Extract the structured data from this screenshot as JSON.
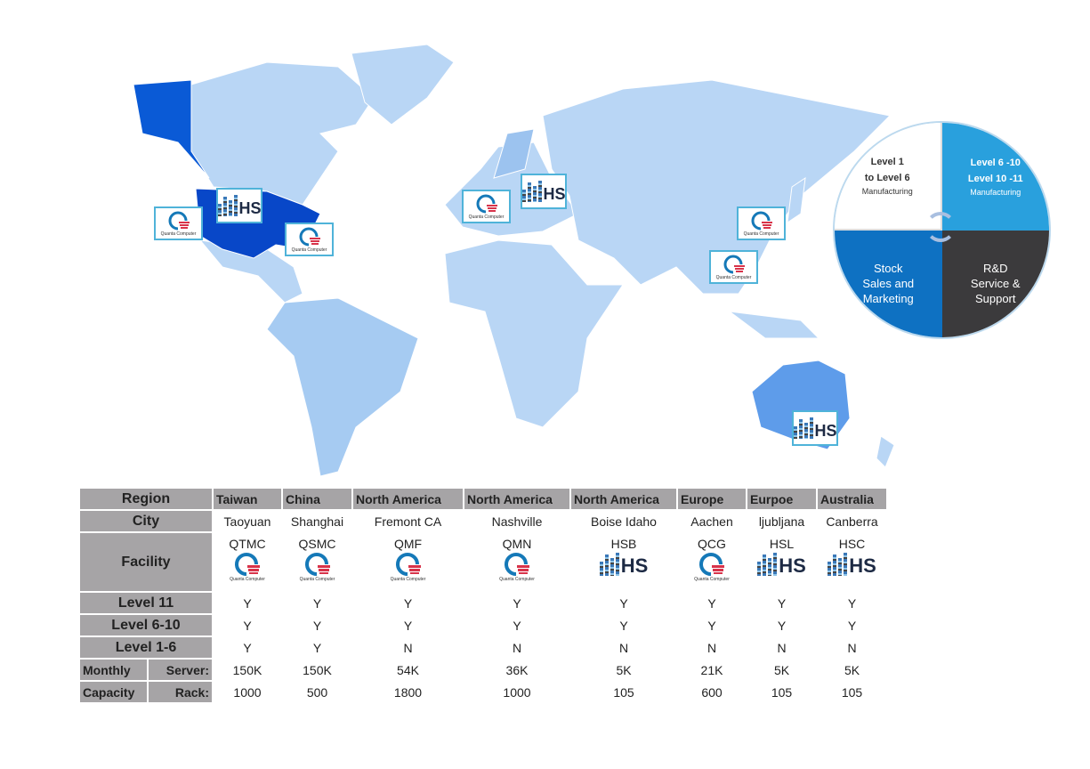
{
  "map": {
    "colors": {
      "ocean": "#ffffff",
      "land": "#b9d6f5",
      "land_mid": "#9cc3ef",
      "usa": "#0847c8",
      "alaska": "#0a5ad6",
      "australia": "#5e9cea"
    }
  },
  "logos": {
    "quanta_text": "Quanta Computer",
    "hs_text": "HS"
  },
  "cycle": {
    "q1": {
      "line1": "Level 1",
      "line2": "to Level 6",
      "sub": "Manufacturing"
    },
    "q2": {
      "line1": "Level 6 -10",
      "line2": "Level 10 -11",
      "sub": "Manufacturing"
    },
    "q3": {
      "line1": "Stock",
      "line2": "Sales and",
      "line3": "Marketing"
    },
    "q4": {
      "line1": "R&D",
      "line2": "Service &",
      "line3": "Support"
    }
  },
  "table": {
    "labels": {
      "region": "Region",
      "city": "City",
      "facility": "Facility",
      "l11": "Level 11",
      "l610": "Level 6-10",
      "l16": "Level 1-6",
      "monthly": "Monthly",
      "capacity": "Capacity",
      "server": "Server:",
      "rack": "Rack:"
    },
    "columns": [
      {
        "region": "Taiwan",
        "city": "Taoyuan",
        "facility": "QTMC",
        "logo": "quanta",
        "l11": "Y",
        "l610": "Y",
        "l16": "Y",
        "server": "150K",
        "rack": "1000"
      },
      {
        "region": "China",
        "city": "Shanghai",
        "facility": "QSMC",
        "logo": "quanta",
        "l11": "Y",
        "l610": "Y",
        "l16": "Y",
        "server": "150K",
        "rack": "500"
      },
      {
        "region": "North America",
        "city": "Fremont CA",
        "facility": "QMF",
        "logo": "quanta",
        "l11": "Y",
        "l610": "Y",
        "l16": "N",
        "server": "54K",
        "rack": "1800"
      },
      {
        "region": "North America",
        "city": "Nashville",
        "facility": "QMN",
        "logo": "quanta",
        "l11": "Y",
        "l610": "Y",
        "l16": "N",
        "server": "36K",
        "rack": "1000"
      },
      {
        "region": "North America",
        "city": "Boise Idaho",
        "facility": "HSB",
        "logo": "hs",
        "l11": "Y",
        "l610": "Y",
        "l16": "N",
        "server": "5K",
        "rack": "105"
      },
      {
        "region": "Europe",
        "city": "Aachen",
        "facility": "QCG",
        "logo": "quanta",
        "l11": "Y",
        "l610": "Y",
        "l16": "N",
        "server": "21K",
        "rack": "600"
      },
      {
        "region": "Eurpoe",
        "city": "ljubljana",
        "facility": "HSL",
        "logo": "hs",
        "l11": "Y",
        "l610": "Y",
        "l16": "N",
        "server": "5K",
        "rack": "105"
      },
      {
        "region": "Australia",
        "city": "Canberra",
        "facility": "HSC",
        "logo": "hs",
        "l11": "Y",
        "l610": "Y",
        "l16": "N",
        "server": "5K",
        "rack": "105"
      }
    ]
  }
}
